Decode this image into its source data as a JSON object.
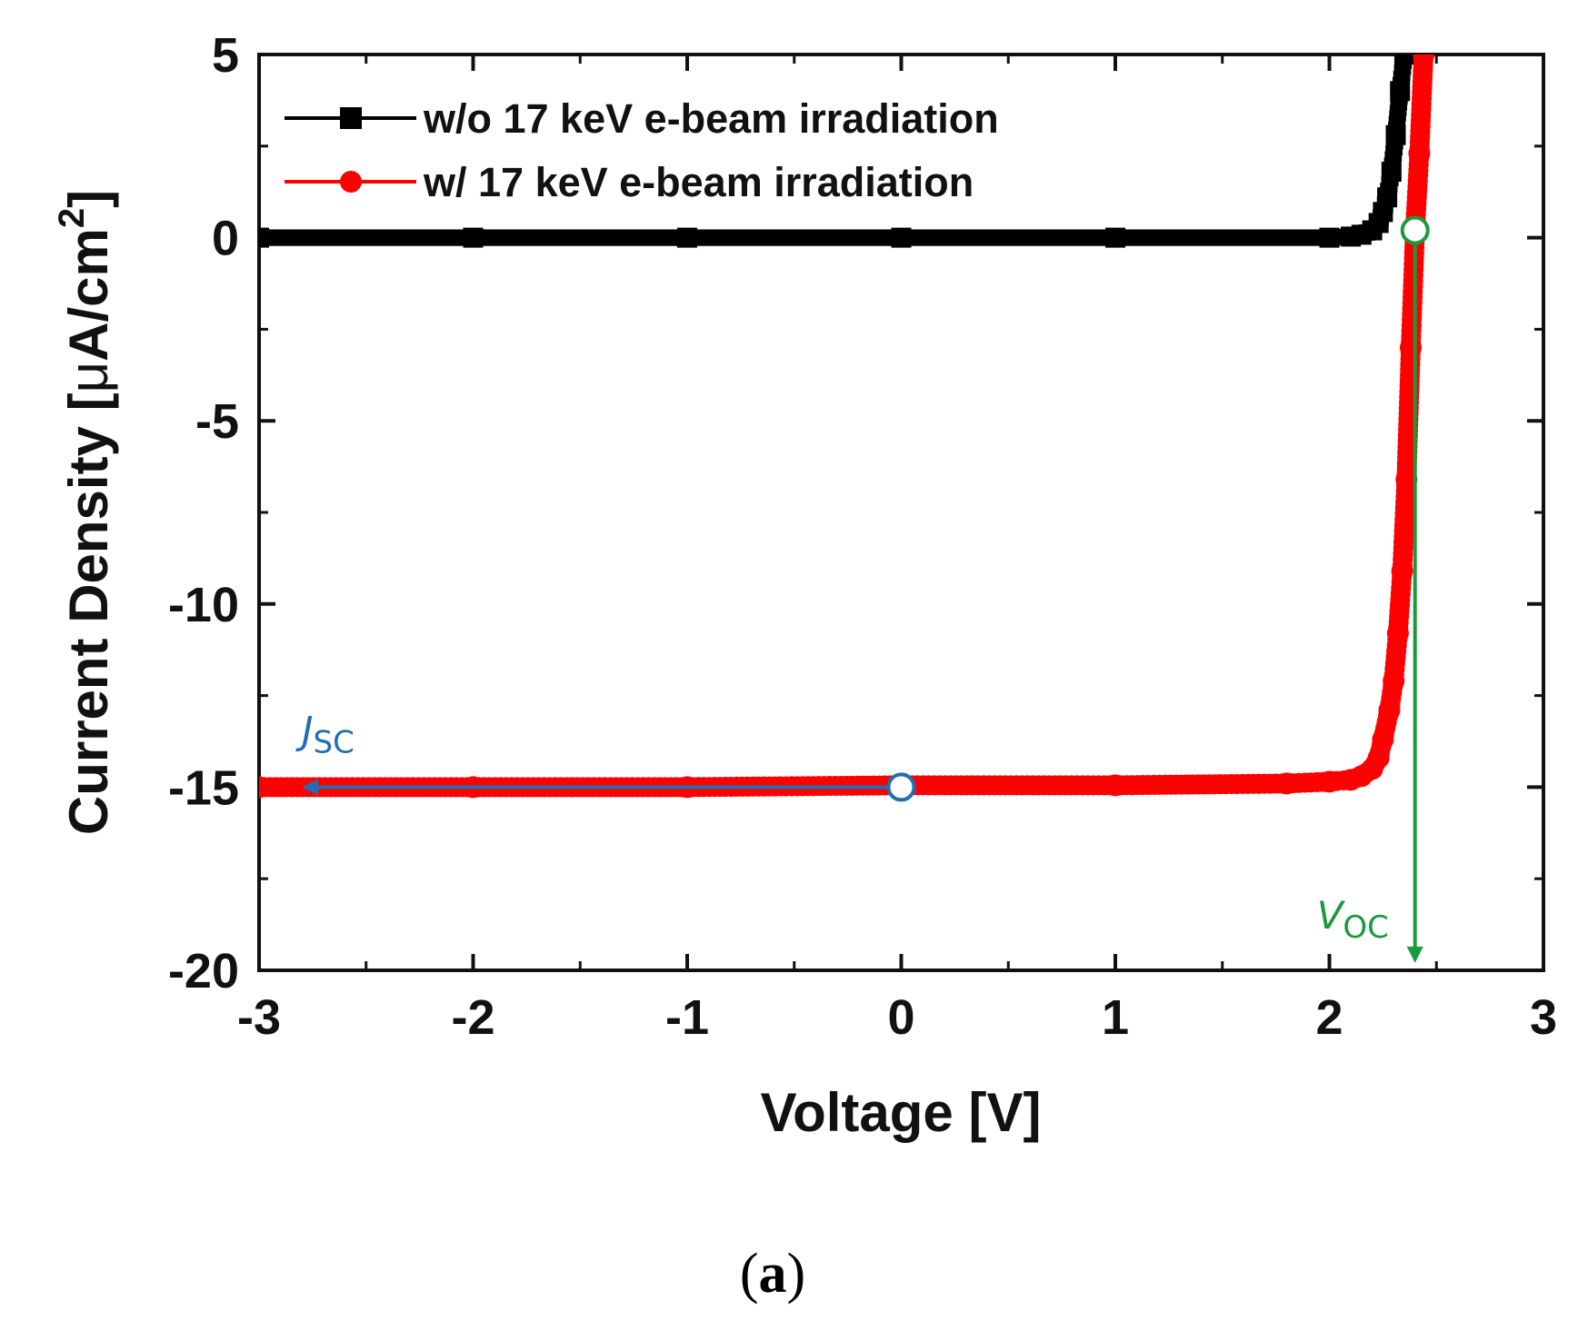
{
  "chart_data": {
    "type": "line",
    "title": "",
    "xlabel": "Voltage [V]",
    "ylabel_prefix": "Current Density [",
    "ylabel_mu": "μ",
    "ylabel_unit": "A/cm",
    "ylabel_sup": "2",
    "ylabel_suffix": "]",
    "xlim": [
      -3,
      3
    ],
    "ylim": [
      -20,
      5
    ],
    "xticks": [
      -3,
      -2,
      -1,
      0,
      1,
      2,
      3
    ],
    "xtick_labels": [
      "-3",
      "-2",
      "-1",
      "0",
      "1",
      "2",
      "3"
    ],
    "yticks": [
      5,
      0,
      -5,
      -10,
      -15,
      -20
    ],
    "ytick_labels": [
      "5",
      "0",
      "-5",
      "-10",
      "-15",
      "-20"
    ],
    "grid": false,
    "legend_position": "top-left",
    "series": [
      {
        "name": "w/o 17 keV e-beam irradiation",
        "color": "#000000",
        "marker": "square",
        "x": [
          -3.0,
          -2.0,
          -1.0,
          0.0,
          1.0,
          2.0,
          2.1,
          2.15,
          2.2,
          2.23,
          2.25,
          2.27,
          2.29,
          2.31,
          2.33,
          2.35
        ],
        "y": [
          0.0,
          0.0,
          0.0,
          0.0,
          0.0,
          0.0,
          0.03,
          0.08,
          0.2,
          0.4,
          0.7,
          1.1,
          1.8,
          2.8,
          4.0,
          5.0
        ]
      },
      {
        "name": "w/ 17 keV e-beam irradiation",
        "color": "#ff0000",
        "marker": "circle",
        "x": [
          -3.0,
          -2.0,
          -1.0,
          0.0,
          1.0,
          1.8,
          2.0,
          2.1,
          2.15,
          2.2,
          2.23,
          2.25,
          2.28,
          2.3,
          2.32,
          2.34,
          2.36,
          2.38,
          2.4,
          2.42,
          2.44
        ],
        "y": [
          -15.0,
          -15.0,
          -15.0,
          -14.95,
          -14.95,
          -14.9,
          -14.85,
          -14.8,
          -14.7,
          -14.5,
          -14.2,
          -13.7,
          -12.9,
          -12.1,
          -10.8,
          -9.1,
          -6.6,
          -3.0,
          0.2,
          2.3,
          5.0
        ]
      }
    ],
    "annotations": {
      "jsc": {
        "label_main": "J",
        "label_sub": "SC",
        "color": "#1f6fb2",
        "x": 0.0,
        "y": -15.0,
        "arrow_to_x": -2.8
      },
      "voc": {
        "label_main": "V",
        "label_sub": "OC",
        "color": "#1a9a3a",
        "x": 2.4,
        "y": 0.2,
        "arrow_to_y": -19.8
      }
    }
  },
  "caption": {
    "open": "(",
    "letter": "a",
    "close": ")"
  }
}
